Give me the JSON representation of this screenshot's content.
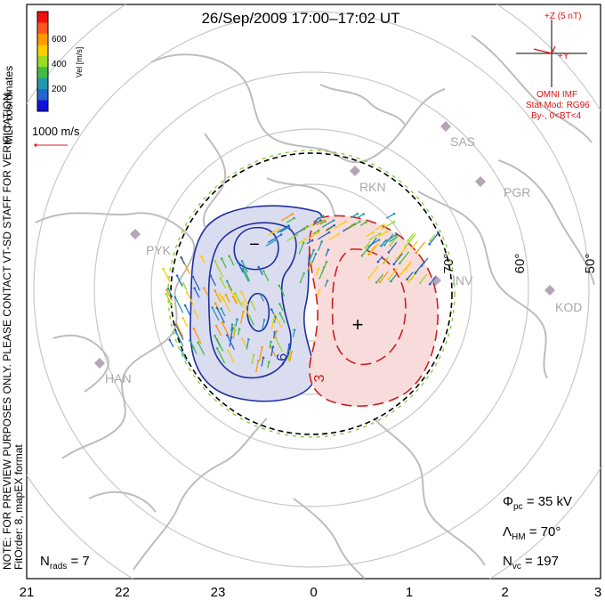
{
  "title": "26/Sep/2009 17:00–17:02 UT",
  "side_note": {
    "line1": "NOTE: FOR PREVIEW PURPOSES ONLY. PLEASE CONTACT VT-SD STAFF FOR VERIFICATION.",
    "line2": "FitOrder: 8, mapEX format"
  },
  "coord_label": "MLT coordinates",
  "color_scale": {
    "label": "Vel [m/s]",
    "ticks": [
      "600",
      "400",
      "200"
    ],
    "colors": [
      "#ee1111",
      "#ff5522",
      "#ff9900",
      "#ffcc00",
      "#99dd22",
      "#44bb44",
      "#2299aa",
      "#2266cc",
      "#1111dd"
    ]
  },
  "ref_vector": {
    "label": "1000 m/s",
    "color": "#dd2222"
  },
  "imf": {
    "z_label": "+Z (5 nT)",
    "y_label": "+Y",
    "source": "OMNI IMF",
    "model": "Stat Mod: RG96",
    "condition": "By-, 0<BT<4",
    "color": "#dd1111"
  },
  "stations": [
    "SAS",
    "RKN",
    "PGR",
    "PYK",
    "INV",
    "KOD",
    "HAN"
  ],
  "lat_labels": [
    "70°",
    "60°",
    "50°"
  ],
  "contours": {
    "neg_value": "-6",
    "pos_value": "3",
    "neg_sign": "−",
    "pos_sign": "+",
    "neg_color": "#1f2f9e",
    "pos_color": "#cc1f1f"
  },
  "stats": {
    "phi_pc": "35 kV",
    "lambda_hm": "70°",
    "n_vc": "197",
    "n_rads": "7"
  },
  "mlt_axis": [
    "21",
    "22",
    "23",
    "0",
    "1",
    "2",
    "3"
  ]
}
